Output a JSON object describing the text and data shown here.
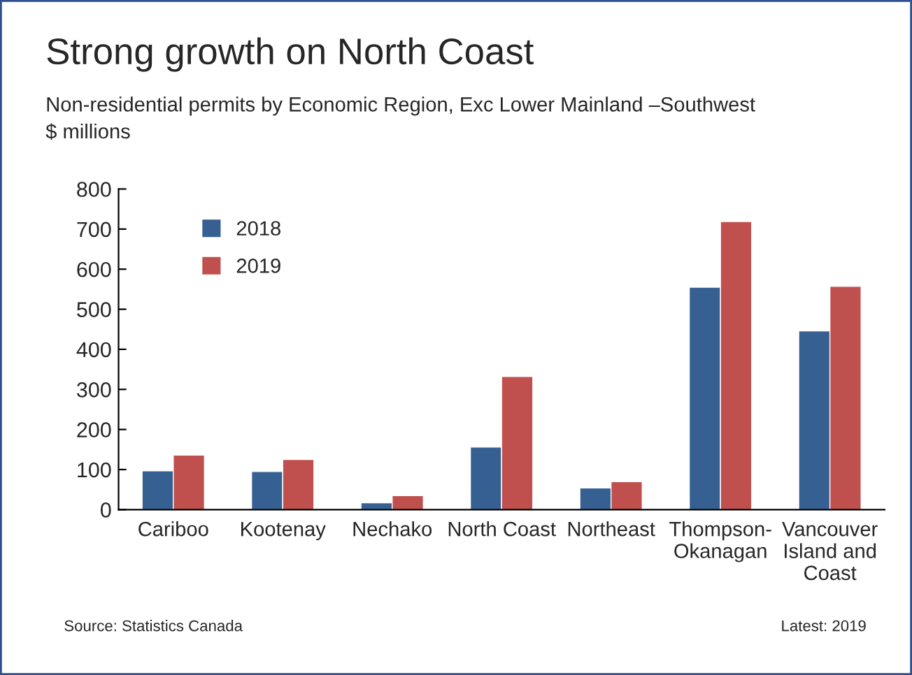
{
  "chart_data": {
    "type": "bar",
    "title": "Strong growth on North Coast",
    "subtitle": "Non-residential permits by Economic Region, Exc Lower Mainland –Southwest",
    "ylabel": "$ millions",
    "categories": [
      "Cariboo",
      "Kootenay",
      "Nechako",
      "North Coast",
      "Northeast",
      "Thompson-\nOkanagan",
      "Vancouver\nIsland and\nCoast"
    ],
    "series": [
      {
        "name": "2018",
        "color": "#376092",
        "values": [
          97,
          95,
          17,
          156,
          54,
          555,
          446
        ]
      },
      {
        "name": "2019",
        "color": "#c0504d",
        "values": [
          136,
          125,
          35,
          332,
          70,
          719,
          557
        ]
      }
    ],
    "ylim": [
      0,
      800
    ],
    "yticks": [
      0,
      100,
      200,
      300,
      400,
      500,
      600,
      700,
      800
    ],
    "grid": false,
    "legend": "top left",
    "annotations": [
      "Source: Statistics Canada",
      "Latest: 2019"
    ]
  }
}
